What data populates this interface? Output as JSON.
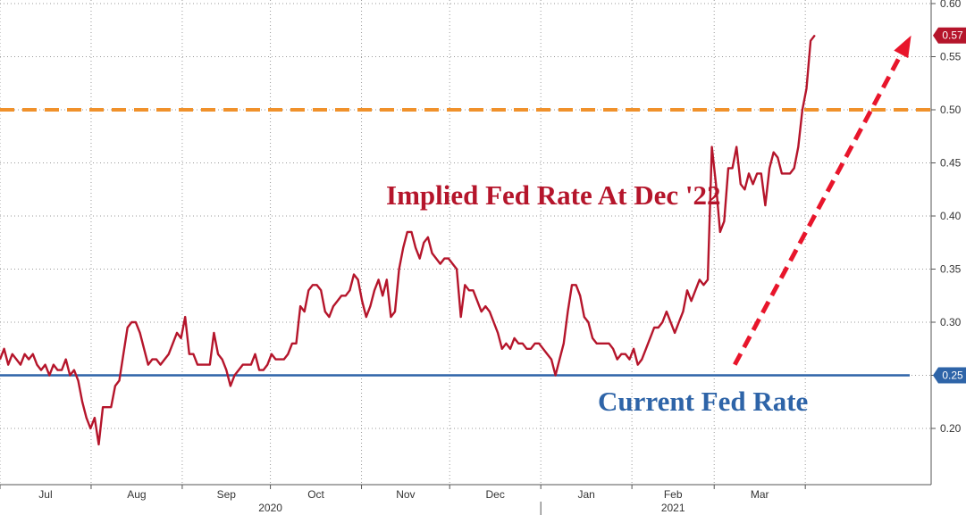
{
  "chart_data": {
    "type": "line",
    "title": "",
    "xlabel": "",
    "ylabel": "",
    "ylim": [
      0.14,
      0.6
    ],
    "y_ticks": [
      "0.20",
      "0.25",
      "0.30",
      "0.35",
      "0.40",
      "0.45",
      "0.50",
      "0.55",
      "0.60"
    ],
    "month_labels": [
      "Jul",
      "Aug",
      "Sep",
      "Oct",
      "Nov",
      "Dec",
      "Jan",
      "Feb",
      "Mar"
    ],
    "year_labels": [
      "2020",
      "2021"
    ],
    "series": [
      {
        "name": "Implied Fed Rate At Dec '22",
        "color": "#b5152b",
        "x_start_day": 0,
        "x_step_days": 1.4,
        "values": [
          0.265,
          0.275,
          0.26,
          0.27,
          0.265,
          0.26,
          0.27,
          0.265,
          0.27,
          0.26,
          0.255,
          0.26,
          0.25,
          0.26,
          0.255,
          0.255,
          0.265,
          0.25,
          0.255,
          0.245,
          0.225,
          0.21,
          0.2,
          0.21,
          0.185,
          0.22,
          0.22,
          0.22,
          0.24,
          0.245,
          0.27,
          0.295,
          0.3,
          0.3,
          0.29,
          0.275,
          0.26,
          0.265,
          0.265,
          0.26,
          0.265,
          0.27,
          0.28,
          0.29,
          0.285,
          0.305,
          0.27,
          0.27,
          0.26,
          0.26,
          0.26,
          0.26,
          0.29,
          0.27,
          0.265,
          0.255,
          0.24,
          0.25,
          0.255,
          0.26,
          0.26,
          0.26,
          0.27,
          0.255,
          0.255,
          0.26,
          0.27,
          0.265,
          0.265,
          0.265,
          0.27,
          0.28,
          0.28,
          0.315,
          0.31,
          0.33,
          0.335,
          0.335,
          0.33,
          0.31,
          0.305,
          0.315,
          0.32,
          0.325,
          0.325,
          0.33,
          0.345,
          0.34,
          0.32,
          0.305,
          0.315,
          0.33,
          0.34,
          0.325,
          0.34,
          0.305,
          0.31,
          0.35,
          0.37,
          0.385,
          0.385,
          0.37,
          0.36,
          0.375,
          0.38,
          0.365,
          0.36,
          0.355,
          0.36,
          0.36,
          0.355,
          0.35,
          0.305,
          0.335,
          0.33,
          0.33,
          0.32,
          0.31,
          0.315,
          0.31,
          0.3,
          0.29,
          0.275,
          0.28,
          0.275,
          0.285,
          0.28,
          0.28,
          0.275,
          0.275,
          0.28,
          0.28,
          0.275,
          0.27,
          0.265,
          0.25,
          0.265,
          0.28,
          0.31,
          0.335,
          0.335,
          0.325,
          0.305,
          0.3,
          0.285,
          0.28,
          0.28,
          0.28,
          0.28,
          0.275,
          0.265,
          0.27,
          0.27,
          0.265,
          0.275,
          0.26,
          0.265,
          0.275,
          0.285,
          0.295,
          0.295,
          0.3,
          0.31,
          0.3,
          0.29,
          0.3,
          0.31,
          0.33,
          0.32,
          0.33,
          0.34,
          0.335,
          0.34,
          0.465,
          0.43,
          0.385,
          0.395,
          0.445,
          0.445,
          0.465,
          0.43,
          0.425,
          0.44,
          0.43,
          0.44,
          0.44,
          0.41,
          0.445,
          0.46,
          0.455,
          0.44,
          0.44,
          0.44,
          0.445,
          0.465,
          0.5,
          0.52,
          0.565,
          0.57
        ]
      }
    ],
    "reference_lines": [
      {
        "name": "Current Fed Rate",
        "value": 0.25,
        "color": "#2e64a8",
        "style": "solid"
      },
      {
        "name": "0.50 threshold",
        "value": 0.5,
        "color": "#f0912b",
        "style": "dashed"
      }
    ],
    "value_flags": [
      {
        "label": "0.57",
        "value": 0.57,
        "color": "#b5152b"
      },
      {
        "label": "0.25",
        "value": 0.25,
        "color": "#2e64a8"
      }
    ],
    "annotations": [
      {
        "text": "Implied Fed Rate At Dec '22",
        "color": "#b5152b"
      },
      {
        "text": "Current Fed Rate",
        "color": "#2e64a8"
      }
    ],
    "trend_arrow": {
      "from_day": 250,
      "from_value": 0.26,
      "to_day": 310,
      "to_value": 0.57,
      "color": "#e8152b"
    }
  }
}
